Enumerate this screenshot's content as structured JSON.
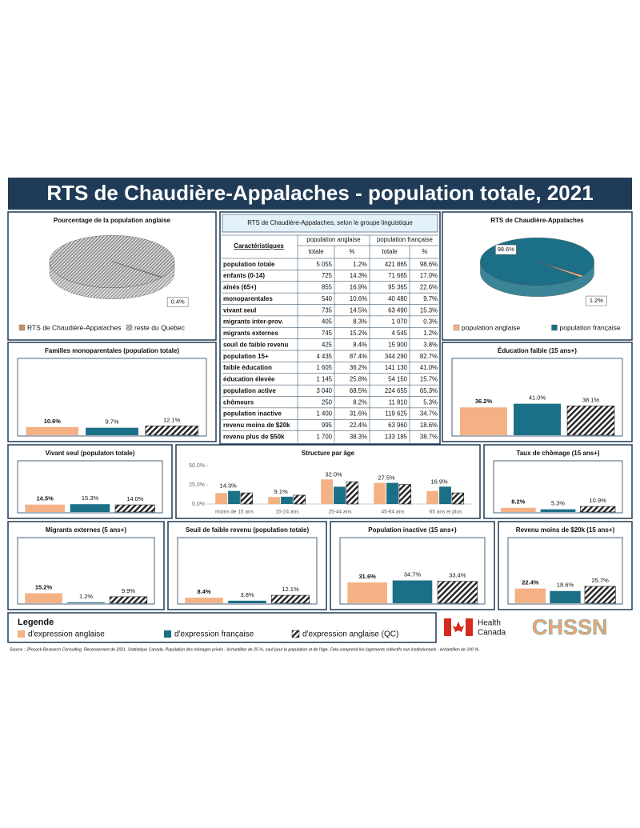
{
  "title": "RTS de Chaudière-Appalaches - population totale, 2021",
  "chart_data": [
    {
      "type": "pie",
      "title": "Pourcentage de la population anglaise",
      "categories": [
        "RTS de Chaudière-Appalaches",
        "reste du Quebec"
      ],
      "values": [
        0.4,
        99.6
      ],
      "value_labels": [
        "0.4%",
        null
      ],
      "colors": [
        "#c8916a",
        "hatch-gray"
      ]
    },
    {
      "type": "pie",
      "title": "RTS de Chaudière-Appalaches",
      "categories": [
        "population anglaise",
        "population française"
      ],
      "values": [
        1.2,
        98.6
      ],
      "value_labels": [
        "1.2%",
        "98.6%"
      ],
      "colors": [
        "#f4b183",
        "#1b6f86"
      ]
    },
    {
      "type": "bar",
      "title": "Familles monoparentales (population totale)",
      "values": [
        10.6,
        9.7,
        12.1
      ],
      "value_labels": [
        "10.6%",
        "9.7%",
        "12.1%"
      ],
      "ylim": [
        0,
        100
      ]
    },
    {
      "type": "bar",
      "title": "Éducation faible (15 ans+)",
      "values": [
        36.2,
        41.0,
        38.1
      ],
      "value_labels": [
        "36.2%",
        "41.0%",
        "38.1%"
      ],
      "ylim": [
        0,
        100
      ]
    },
    {
      "type": "bar",
      "title": "Vivant seul (populaton totale)",
      "values": [
        14.5,
        15.3,
        14.0
      ],
      "value_labels": [
        "14.5%",
        "15.3%",
        "14.0%"
      ],
      "ylim": [
        0,
        100
      ]
    },
    {
      "type": "grouped",
      "title": "Structure par âge",
      "categories": [
        "moins de 15 ans",
        "15-24 ans",
        "25-44 ans",
        "45-64 ans",
        "65 ans et plus"
      ],
      "series": [
        {
          "color": "#f4b183",
          "values": [
            14.3,
            9.1,
            32.0,
            27.5,
            16.9
          ],
          "value_labels": [
            "14.3%",
            "9.1%",
            "32.0%",
            "27.5%",
            "16.9%"
          ]
        },
        {
          "color": "#1b6f86",
          "values": [
            17.0,
            9.5,
            22.5,
            27.5,
            22.6
          ]
        },
        {
          "color": "hatch",
          "values": [
            14.5,
            11.5,
            29.0,
            25.5,
            14.5
          ]
        }
      ],
      "ylim": [
        0,
        50
      ],
      "yticks": [
        {
          "value": 0,
          "label": "0.0%"
        },
        {
          "value": 25,
          "label": "25.0%"
        },
        {
          "value": 50,
          "label": "50.0%"
        }
      ]
    },
    {
      "type": "bar",
      "title": "Taux de chômage (15 ans+)",
      "values": [
        8.2,
        5.3,
        10.9
      ],
      "value_labels": [
        "8.2%",
        "5.3%",
        "10.9%"
      ],
      "ylim": [
        0,
        100
      ]
    },
    {
      "type": "bar",
      "title": "Migrants externes (5 ans+)",
      "values": [
        15.2,
        1.2,
        9.9
      ],
      "value_labels": [
        "15.2%",
        "1.2%",
        "9.9%"
      ],
      "ylim": [
        0,
        100
      ]
    },
    {
      "type": "bar",
      "title": "Seuil de faible revenu (population totale)",
      "values": [
        8.4,
        3.8,
        12.1
      ],
      "value_labels": [
        "8.4%",
        "3.8%",
        "12.1%"
      ],
      "ylim": [
        0,
        100
      ]
    },
    {
      "type": "bar",
      "title": "Population inactive (15 ans+)",
      "values": [
        31.6,
        34.7,
        33.4
      ],
      "value_labels": [
        "31.6%",
        "34.7%",
        "33.4%"
      ],
      "ylim": [
        0,
        100
      ]
    },
    {
      "type": "bar",
      "title": "Revenu moins de $20k (15 ans+)",
      "values": [
        22.4,
        18.6,
        25.7
      ],
      "value_labels": [
        "22.4%",
        "18.6%",
        "25.7%"
      ],
      "ylim": [
        0,
        100
      ]
    }
  ],
  "table": {
    "title": "RTS de Chaudière-Appalaches, selon le groupe linguistique",
    "headers": [
      "Caractéristiques",
      "population anglaise",
      "population française"
    ],
    "subheaders": [
      "totale",
      "%",
      "totale",
      "%"
    ],
    "rows": [
      [
        "population totale",
        "5 055",
        "1.2%",
        "421 865",
        "98.6%"
      ],
      [
        "enfants (0-14)",
        "725",
        "14.3%",
        "71 665",
        "17.0%"
      ],
      [
        "aînés (65+)",
        "855",
        "16.9%",
        "95 365",
        "22.6%"
      ],
      [
        "monoparentales",
        "540",
        "10.6%",
        "40 480",
        "9.7%"
      ],
      [
        "vivant seul",
        "735",
        "14.5%",
        "63 490",
        "15.3%"
      ],
      [
        "migrants inter-prov.",
        "405",
        "8.3%",
        "1 070",
        "0.3%"
      ],
      [
        "migrants externes",
        "745",
        "15.2%",
        "4 545",
        "1.2%"
      ],
      [
        "seuil de faible revenu",
        "425",
        "8.4%",
        "15 900",
        "3.8%"
      ],
      [
        "population 15+",
        "4 435",
        "87.4%",
        "344 290",
        "82.7%"
      ],
      [
        "faible éducation",
        "1 605",
        "36.2%",
        "141 130",
        "41.0%"
      ],
      [
        "éducation élevée",
        "1 145",
        "25.8%",
        "54 150",
        "15.7%"
      ],
      [
        "population active",
        "3 040",
        "68.5%",
        "224 655",
        "65.3%"
      ],
      [
        "chômeurs",
        "250",
        "8.2%",
        "11 810",
        "5.3%"
      ],
      [
        "population inactive",
        "1 400",
        "31.6%",
        "119 625",
        "34.7%"
      ],
      [
        "revenu moins de $20k",
        "995",
        "22.4%",
        "63 960",
        "18.6%"
      ],
      [
        "revenu plus de $50k",
        "1 700",
        "38.3%",
        "133 185",
        "38.7%"
      ]
    ]
  },
  "legend": {
    "title": "Legende",
    "items": [
      {
        "label": "d'expression anglaise",
        "color": "#f4b183"
      },
      {
        "label": "d'expression française",
        "color": "#1b6f86"
      },
      {
        "label": "d'expression anglaise (QC)",
        "color": "hatch"
      }
    ]
  },
  "logos": {
    "health": [
      "Health",
      "Canada"
    ],
    "chssn": "CHSSN"
  },
  "source": "Source : JPocock Research Consulting. Recensement de 2021. Statistique Canada. Population des ménages privés - échantillon de 25 %, sauf pour la population et de l'âge. Cela comprend les logements collectifs non institutionnels - échantillon de 100 %."
}
